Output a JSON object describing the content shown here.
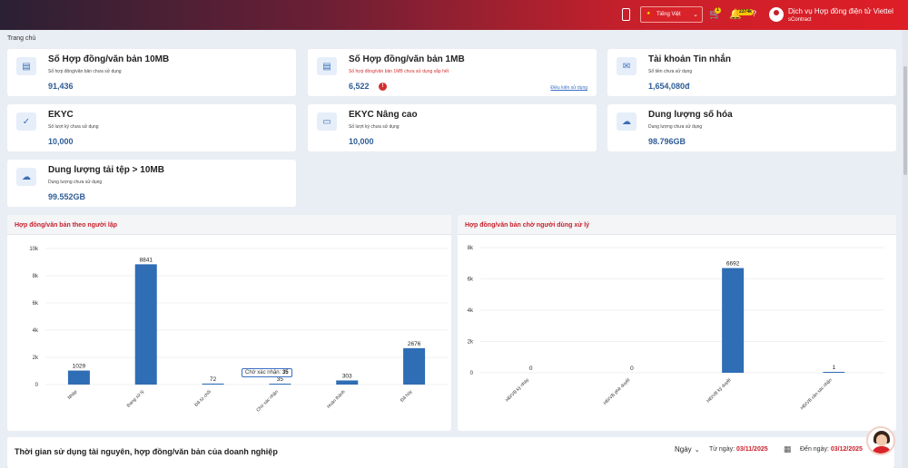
{
  "header": {
    "language": "Tiếng Việt",
    "cart_badge": "1",
    "notification_badge": "2374k",
    "user_name": "Dịch vụ Hợp đồng điện tử Viettel",
    "user_sub": "sContract"
  },
  "breadcrumb": "Trang chủ",
  "cards": [
    {
      "title": "Số Hợp đồng/văn bản 10MB",
      "sub": "Số hợp đồng/văn bản chưa sử dụng",
      "value": "91,436",
      "icon": "document-icon"
    },
    {
      "title": "Số Hợp đồng/văn bản 1MB",
      "sub": "Số hợp đồng/văn bản 1MB chưa sử dụng sắp hết",
      "value": "6,522",
      "alert": "!",
      "link": "Điều kiện sử dụng",
      "icon": "document-icon"
    },
    {
      "title": "Tài khoản Tin nhắn",
      "sub": "Số tiền chưa sử dụng",
      "value": "1,654,080đ",
      "icon": "mail-icon"
    },
    {
      "title": "EKYC",
      "sub": "Số lượt ký chưa sử dụng",
      "value": "10,000",
      "icon": "check-icon"
    },
    {
      "title": "EKYC Nâng cao",
      "sub": "Số lượt ký chưa sử dụng",
      "value": "10,000",
      "icon": "id-card-icon"
    },
    {
      "title": "Dung lượng số hóa",
      "sub": "Dung lượng chưa sử dụng",
      "value": "98.796GB",
      "icon": "cloud-icon"
    },
    {
      "title": "Dung lượng tải tệp > 10MB",
      "sub": "Dung lượng chưa sử dụng",
      "value": "99.552GB",
      "icon": "cloud-icon"
    }
  ],
  "chart_data": [
    {
      "type": "bar",
      "title": "Hợp đồng/văn bản theo người lập",
      "categories": [
        "Nháp",
        "Đang xử lý",
        "Đã từ chối",
        "Chờ xác nhận",
        "Hoàn thành",
        "Đã hủy"
      ],
      "values": [
        1029,
        8841,
        72,
        35,
        303,
        2676
      ],
      "ylim": [
        0,
        10000
      ],
      "yticks": [
        "0",
        "2k",
        "4k",
        "6k",
        "8k",
        "10k"
      ],
      "tooltip": {
        "label": "Chờ xác nhận:",
        "value": "35"
      },
      "color": "#2f6db5"
    },
    {
      "type": "bar",
      "title": "Hợp đồng/văn bản chờ người dùng xử lý",
      "categories": [
        "HĐ/VB ký nháy",
        "HĐ/VB phê duyệt",
        "HĐ/VB ký duyệt",
        "HĐ/VB cần xác nhận"
      ],
      "values": [
        0,
        0,
        6692,
        1
      ],
      "ylim": [
        0,
        8000
      ],
      "yticks": [
        "0",
        "2k",
        "4k",
        "6k",
        "8k"
      ],
      "color": "#2f6db5"
    }
  ],
  "bottom": {
    "title": "Thời gian sử dụng tài nguyên, hợp đồng/văn bản của doanh nghiệp",
    "mode": "Ngày",
    "from_label": "Từ ngày:",
    "from_date": "03/11/2025",
    "to_label": "Đến ngày:",
    "to_date": "03/12/2025"
  }
}
